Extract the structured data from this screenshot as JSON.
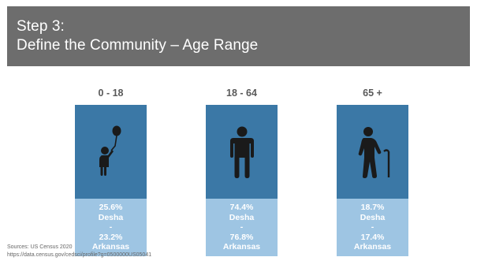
{
  "header": {
    "line1": "Step 3:",
    "line2": "Define the Community – Age Range"
  },
  "columns": [
    {
      "label": "0 - 18",
      "icon": "child-with-balloon-icon",
      "pct1": "25.6%",
      "place1": "Desha",
      "sep": "-",
      "pct2": "23.2%",
      "place2": "Arkansas"
    },
    {
      "label": "18 - 64",
      "icon": "adult-person-icon",
      "pct1": "74.4%",
      "place1": "Desha",
      "sep": "-",
      "pct2": "76.8%",
      "place2": "Arkansas"
    },
    {
      "label": "65 +",
      "icon": "elderly-with-cane-icon",
      "pct1": "18.7%",
      "place1": "Desha",
      "sep": "-",
      "pct2": "17.4%",
      "place2": "Arkansas"
    }
  ],
  "sources": {
    "line1": "Sources: US Census 2020",
    "line2": "https://data.census.gov/cedsci/profile?g=0500000US05041"
  },
  "colors": {
    "header_bg": "#6d6d6d",
    "icon_box": "#3b78a6",
    "stats_box": "#9ec5e3",
    "label_text": "#595959"
  }
}
